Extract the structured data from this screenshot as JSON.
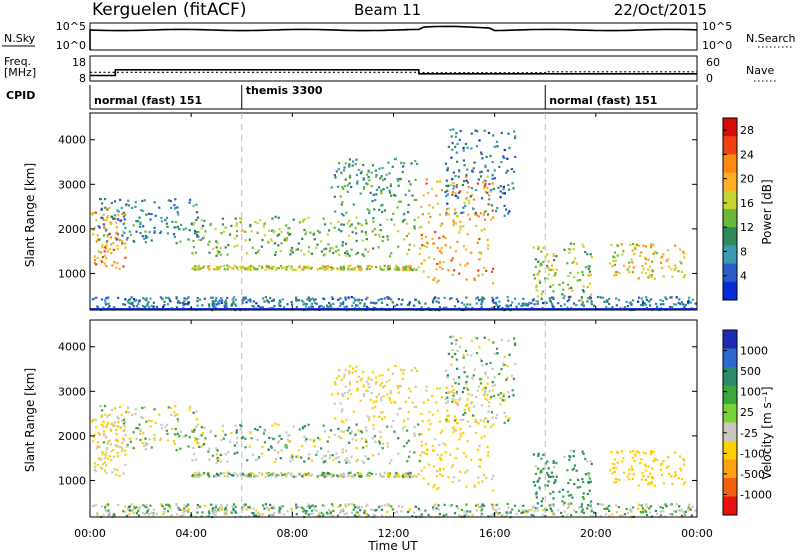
{
  "header": {
    "station": "Kerguelen (fitACF)",
    "beam": "Beam 11",
    "date": "22/Oct/2015"
  },
  "top_panels": {
    "nsky_label": "N.Sky",
    "nsky_ticks": [
      "10^5",
      "10^0"
    ],
    "nsearch_label": "N.Search",
    "nsearch_ticks": [
      "10^5",
      "10^0"
    ],
    "freq_label": "Freq.",
    "freq_unit": "[MHz]",
    "freq_ticks": [
      "18",
      "8"
    ],
    "nave_label": "Nave",
    "nave_ticks": [
      "60",
      "0"
    ],
    "cpid_label": "CPID",
    "modes": [
      {
        "name": "normal (fast) 151",
        "start_h": 0,
        "end_h": 6
      },
      {
        "name": "themis 3300",
        "start_h": 6,
        "end_h": 18
      },
      {
        "name": "normal (fast) 151",
        "start_h": 18,
        "end_h": 24
      }
    ],
    "freq_mhz": [
      {
        "start_h": 0,
        "end_h": 1,
        "value": 10.2
      },
      {
        "start_h": 1,
        "end_h": 13,
        "value": 12.5
      },
      {
        "start_h": 13,
        "end_h": 24,
        "value": 10.9
      }
    ],
    "nave": [
      {
        "start_h": 0,
        "end_h": 13,
        "value": 21
      },
      {
        "start_h": 13,
        "end_h": 18,
        "value": 20
      },
      {
        "start_h": 18,
        "end_h": 24,
        "value": 22
      }
    ]
  },
  "chart_data": [
    {
      "type": "heatmap",
      "name": "power",
      "ylabel": "Slant Range [km]",
      "yticks": [
        1000,
        2000,
        3000,
        4000
      ],
      "ylim": [
        180,
        4600
      ],
      "xlim": [
        0,
        24
      ],
      "colorbar_label": "Power [dB]",
      "colorbar_ticks": [
        4,
        8,
        12,
        16,
        20,
        24,
        28
      ],
      "colorbar_colors": [
        "#0a2ad6",
        "#2a5cc4",
        "#3a9ab0",
        "#2f8a5a",
        "#6ab83a",
        "#c8d430",
        "#ffb020",
        "#ff8a10",
        "#f24010",
        "#d80a0a"
      ],
      "features": [
        {
          "start_h": 0.0,
          "end_h": 1.4,
          "range_km": [
            1100,
            2500
          ],
          "level": 0.7
        },
        {
          "start_h": 0.3,
          "end_h": 4.5,
          "range_km": [
            1700,
            2700
          ],
          "level": 0.25
        },
        {
          "start_h": 4.0,
          "end_h": 13.0,
          "range_km": [
            1400,
            2300
          ],
          "level": 0.45
        },
        {
          "start_h": 4.0,
          "end_h": 13.0,
          "range_km": [
            1100,
            1200
          ],
          "level": 0.55
        },
        {
          "start_h": 9.5,
          "end_h": 12.9,
          "range_km": [
            2300,
            3600
          ],
          "level": 0.3
        },
        {
          "start_h": 13.0,
          "end_h": 15.9,
          "range_km": [
            800,
            3200
          ],
          "level": 0.7
        },
        {
          "start_h": 14.0,
          "end_h": 16.8,
          "range_km": [
            2300,
            4300
          ],
          "level": 0.2
        },
        {
          "start_h": 17.5,
          "end_h": 19.8,
          "range_km": [
            400,
            1700
          ],
          "level": 0.5
        },
        {
          "start_h": 20.5,
          "end_h": 23.5,
          "range_km": [
            900,
            1700
          ],
          "level": 0.6
        },
        {
          "start_h": 0.0,
          "end_h": 24.0,
          "range_km": [
            200,
            500
          ],
          "level": 0.2
        }
      ]
    },
    {
      "type": "heatmap",
      "name": "velocity",
      "ylabel": "Slant Range [km]",
      "yticks": [
        1000,
        2000,
        3000,
        4000
      ],
      "ylim": [
        180,
        4600
      ],
      "xlim": [
        0,
        24
      ],
      "xticks": [
        "00:00",
        "04:00",
        "08:00",
        "12:00",
        "16:00",
        "20:00",
        "00:00"
      ],
      "xlabel": "Time UT",
      "colorbar_label": "Velocity [m s⁻¹]",
      "colorbar_ticks": [
        1000,
        500,
        100,
        25,
        -25,
        -100,
        -500,
        -1000
      ],
      "colorbar_colors": [
        "#1e2ab4",
        "#2a6ad0",
        "#2a8a6a",
        "#3aa83a",
        "#7ad23a",
        "#c8c8c0",
        "#ffd000",
        "#ffa010",
        "#f56010",
        "#e81010"
      ],
      "features": [
        {
          "start_h": 0.0,
          "end_h": 1.4,
          "range_km": [
            1100,
            2500
          ],
          "value_ms": -120
        },
        {
          "start_h": 0.3,
          "end_h": 4.5,
          "range_km": [
            1700,
            2700
          ],
          "value_ms": -40
        },
        {
          "start_h": 4.0,
          "end_h": 13.0,
          "range_km": [
            1400,
            2300
          ],
          "value_ms": 0
        },
        {
          "start_h": 4.0,
          "end_h": 13.0,
          "range_km": [
            1100,
            1200
          ],
          "value_ms": 0
        },
        {
          "start_h": 9.5,
          "end_h": 12.9,
          "range_km": [
            2300,
            3600
          ],
          "value_ms": -150
        },
        {
          "start_h": 13.0,
          "end_h": 15.9,
          "range_km": [
            800,
            3200
          ],
          "value_ms": -200
        },
        {
          "start_h": 14.0,
          "end_h": 16.8,
          "range_km": [
            2300,
            4300
          ],
          "value_ms": 0
        },
        {
          "start_h": 17.5,
          "end_h": 19.8,
          "range_km": [
            400,
            1700
          ],
          "value_ms": 150
        },
        {
          "start_h": 20.5,
          "end_h": 23.5,
          "range_km": [
            900,
            1700
          ],
          "value_ms": -250
        },
        {
          "start_h": 0.0,
          "end_h": 24.0,
          "range_km": [
            200,
            500
          ],
          "value_ms": 10
        }
      ]
    }
  ]
}
